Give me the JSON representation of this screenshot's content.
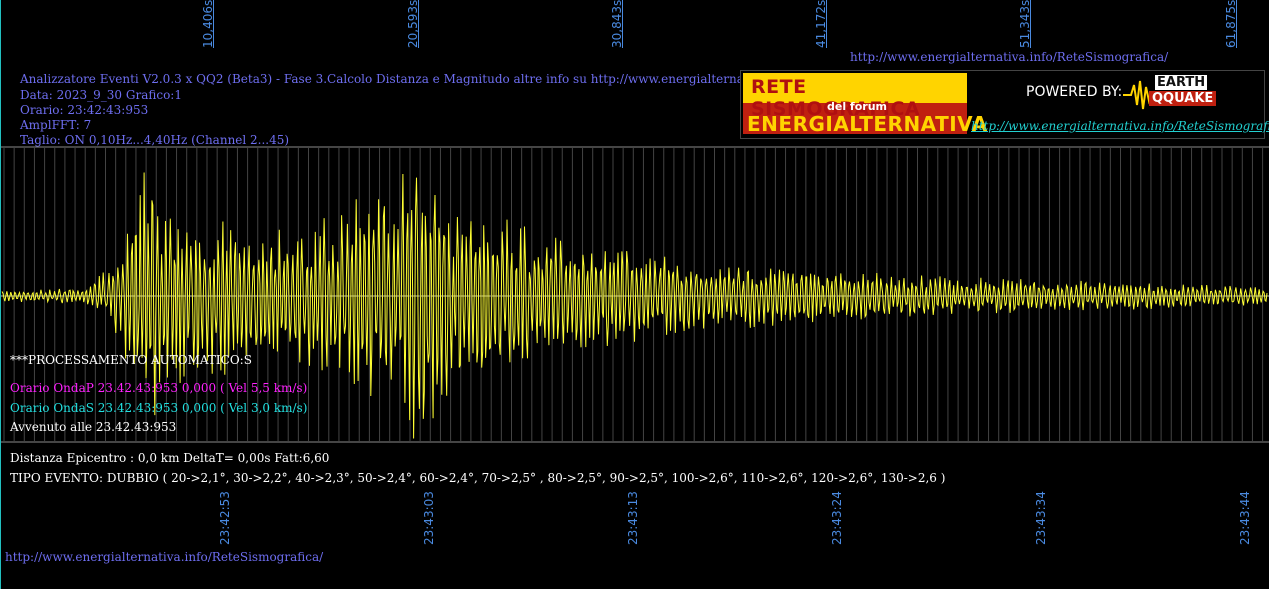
{
  "header": {
    "title_line": "Analizzatore Eventi V2.0.3 x QQ2 (Beta3) - Fase 3.Calcolo Distanza e Magnitudo altre info su http://www.energialternativa.info/ReteSism",
    "data_line": "Data: 2023_9_30 Grafico:1",
    "orario_line": "Orario: 23:42:43:953",
    "ampl_line": "AmplFFT: 7",
    "taglio_line": "Taglio: ON 0,10Hz...4,40Hz       (Channel 2...45)"
  },
  "top_url": "http://www.energialternativa.info/ReteSismografica/",
  "bottom_url": "http://www.energialternativa.info/ReteSismografica/",
  "logo": {
    "line1": "RETE SISMOGRAFICA",
    "line2": "del forum",
    "line3": "ENERGIALTERNATIVA",
    "powered": "POWERED BY:",
    "earth": "EARTH",
    "quake": "QQUAKE",
    "url": "http://www.energialternativa.info/ReteSismografica"
  },
  "processing": {
    "title": "***PROCESSAMENTO AUTOMATICO:S",
    "onda_p": "Orario OndaP 23.42.43:953  0,000 ( Vel 5,5 km/s)",
    "onda_s": "Orario OndaS 23.42.43:953  0,000 ( Vel 3,0 km/s)",
    "avvenuto": "Avvenuto alle 23.42.43:953"
  },
  "result": {
    "distanza": "Distanza Epicentro : 0,0 km DeltaT= 0,00s  Fatt:6,60",
    "tipo": "TIPO EVENTO: DUBBIO ( 20->2,1°, 30->2,2°, 40->2,3°, 50->2,4°, 60->2,4°, 70->2,5° , 80->2,5°, 90->2,5°, 100->2,6°, 110->2,6°, 120->2,6°, 130->2,6 )"
  },
  "colors": {
    "background": "#000000",
    "trace": "#ffff33",
    "grid": "#5a5a5a",
    "axis_label": "#4a8ae0",
    "header_text": "#6e6ef0",
    "onda_p": "#ff22ff",
    "onda_s": "#22e0e0"
  },
  "chart_data": {
    "type": "line",
    "title": "",
    "xlabel": "",
    "ylabel": "",
    "top_axis_ticks": [
      "10,406s",
      "20,593s",
      "30,843s",
      "41,172s",
      "51,343s",
      "61,875s"
    ],
    "bottom_axis_ticks": [
      "23:42:53",
      "23:43:03",
      "23:43:13",
      "23:43:24",
      "23:43:34",
      "23:43:44"
    ],
    "x_range_s": [
      0,
      62
    ],
    "grid": true,
    "series": [
      {
        "envelope_points": [
          {
            "t": 0,
            "amp": 6
          },
          {
            "t": 4,
            "amp": 8
          },
          {
            "t": 5.5,
            "amp": 35
          },
          {
            "t": 6.5,
            "amp": 90
          },
          {
            "t": 7.0,
            "amp": 150
          },
          {
            "t": 8.0,
            "amp": 110
          },
          {
            "t": 10.0,
            "amp": 85
          },
          {
            "t": 14.0,
            "amp": 70
          },
          {
            "t": 17.0,
            "amp": 95
          },
          {
            "t": 19.5,
            "amp": 120
          },
          {
            "t": 20.5,
            "amp": 180
          },
          {
            "t": 22.0,
            "amp": 110
          },
          {
            "t": 25.0,
            "amp": 80
          },
          {
            "t": 30.0,
            "amp": 50
          },
          {
            "t": 35.0,
            "amp": 35
          },
          {
            "t": 40.0,
            "amp": 28
          },
          {
            "t": 45.0,
            "amp": 22
          },
          {
            "t": 50.0,
            "amp": 18
          },
          {
            "t": 55.0,
            "amp": 14
          },
          {
            "t": 62.0,
            "amp": 10
          }
        ]
      }
    ]
  }
}
